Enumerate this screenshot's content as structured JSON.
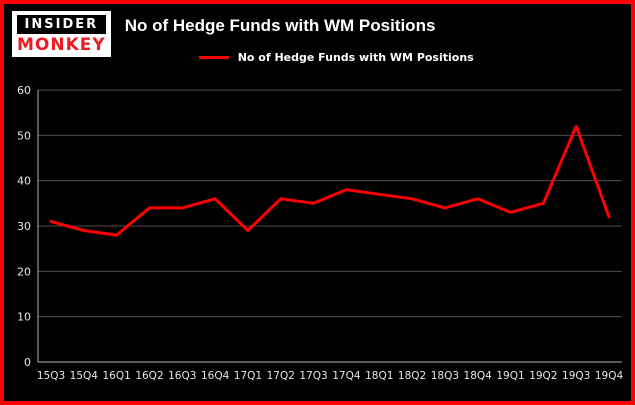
{
  "brand": {
    "line1": "INSIDER",
    "line2": "MONKEY"
  },
  "header": {
    "title": "No of Hedge Funds with WM Positions"
  },
  "legend": {
    "label": "No of Hedge Funds with WM Positions"
  },
  "colors": {
    "background": "#000000",
    "frame_border": "#fe0000",
    "accent_red": "#ff0000",
    "logo_red": "#ed1c24",
    "text": "#ffffff",
    "grid": "#4d4d4d",
    "axis": "#b0b0b0",
    "tick_text": "#e6e6e6"
  },
  "chart_data": {
    "type": "line",
    "title": "No of Hedge Funds with WM Positions",
    "categories": [
      "15Q3",
      "15Q4",
      "16Q1",
      "16Q2",
      "16Q3",
      "16Q4",
      "17Q1",
      "17Q2",
      "17Q3",
      "17Q4",
      "18Q1",
      "18Q2",
      "18Q3",
      "18Q4",
      "19Q1",
      "19Q2",
      "19Q3",
      "19Q4"
    ],
    "series": [
      {
        "name": "No of Hedge Funds with WM Positions",
        "color": "#ff0000",
        "values": [
          31,
          29,
          28,
          34,
          34,
          36,
          29,
          36,
          35,
          38,
          37,
          36,
          34,
          36,
          33,
          35,
          52,
          32
        ]
      }
    ],
    "xlabel": "",
    "ylabel": "",
    "ylim": [
      0,
      60
    ],
    "yticks": [
      0,
      10,
      20,
      30,
      40,
      50,
      60
    ],
    "grid": true,
    "legend_position": "top-left"
  }
}
